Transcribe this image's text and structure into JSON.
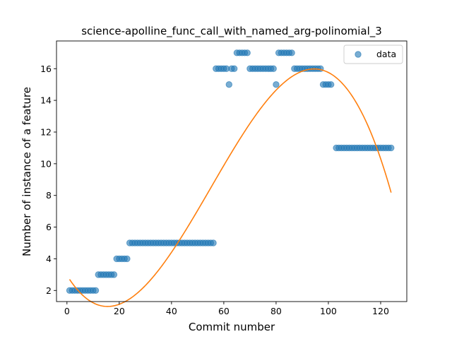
{
  "chart_data": {
    "type": "scatter",
    "title": "science-apolline_func_call_with_named_arg-polinomial_3",
    "xlabel": "Commit number",
    "ylabel": "Number of instance of a feature",
    "xlim": [
      -4,
      130
    ],
    "ylim": [
      1.3,
      17.75
    ],
    "xticks": [
      0,
      20,
      40,
      60,
      80,
      100,
      120
    ],
    "yticks": [
      2,
      4,
      6,
      8,
      10,
      12,
      14,
      16
    ],
    "legend": {
      "position": "top-right",
      "entries": [
        "data"
      ]
    },
    "grid": false,
    "colors": {
      "data": "#1f77b4",
      "fit": "#ff7f0e"
    },
    "series": [
      {
        "name": "data",
        "kind": "scatter",
        "points": [
          [
            1,
            2
          ],
          [
            2,
            2
          ],
          [
            3,
            2
          ],
          [
            4,
            2
          ],
          [
            5,
            2
          ],
          [
            6,
            2
          ],
          [
            7,
            2
          ],
          [
            8,
            2
          ],
          [
            9,
            2
          ],
          [
            10,
            2
          ],
          [
            11,
            2
          ],
          [
            12,
            3
          ],
          [
            13,
            3
          ],
          [
            14,
            3
          ],
          [
            15,
            3
          ],
          [
            16,
            3
          ],
          [
            17,
            3
          ],
          [
            18,
            3
          ],
          [
            19,
            4
          ],
          [
            20,
            4
          ],
          [
            21,
            4
          ],
          [
            22,
            4
          ],
          [
            23,
            4
          ],
          [
            24,
            5
          ],
          [
            25,
            5
          ],
          [
            26,
            5
          ],
          [
            27,
            5
          ],
          [
            28,
            5
          ],
          [
            29,
            5
          ],
          [
            30,
            5
          ],
          [
            31,
            5
          ],
          [
            32,
            5
          ],
          [
            33,
            5
          ],
          [
            34,
            5
          ],
          [
            35,
            5
          ],
          [
            36,
            5
          ],
          [
            37,
            5
          ],
          [
            38,
            5
          ],
          [
            39,
            5
          ],
          [
            40,
            5
          ],
          [
            41,
            5
          ],
          [
            42,
            5
          ],
          [
            43,
            5
          ],
          [
            44,
            5
          ],
          [
            45,
            5
          ],
          [
            46,
            5
          ],
          [
            47,
            5
          ],
          [
            48,
            5
          ],
          [
            49,
            5
          ],
          [
            50,
            5
          ],
          [
            51,
            5
          ],
          [
            52,
            5
          ],
          [
            53,
            5
          ],
          [
            54,
            5
          ],
          [
            55,
            5
          ],
          [
            56,
            5
          ],
          [
            57,
            16
          ],
          [
            58,
            16
          ],
          [
            59,
            16
          ],
          [
            60,
            16
          ],
          [
            61,
            16
          ],
          [
            62,
            15
          ],
          [
            63,
            16
          ],
          [
            64,
            16
          ],
          [
            65,
            17
          ],
          [
            66,
            17
          ],
          [
            67,
            17
          ],
          [
            68,
            17
          ],
          [
            69,
            17
          ],
          [
            70,
            16
          ],
          [
            71,
            16
          ],
          [
            72,
            16
          ],
          [
            73,
            16
          ],
          [
            74,
            16
          ],
          [
            75,
            16
          ],
          [
            76,
            16
          ],
          [
            77,
            16
          ],
          [
            78,
            16
          ],
          [
            79,
            16
          ],
          [
            80,
            15
          ],
          [
            81,
            17
          ],
          [
            82,
            17
          ],
          [
            83,
            17
          ],
          [
            84,
            17
          ],
          [
            85,
            17
          ],
          [
            86,
            17
          ],
          [
            87,
            16
          ],
          [
            88,
            16
          ],
          [
            89,
            16
          ],
          [
            90,
            16
          ],
          [
            91,
            16
          ],
          [
            92,
            16
          ],
          [
            93,
            16
          ],
          [
            94,
            16
          ],
          [
            95,
            16
          ],
          [
            96,
            16
          ],
          [
            97,
            16
          ],
          [
            98,
            15
          ],
          [
            99,
            15
          ],
          [
            100,
            15
          ],
          [
            101,
            15
          ],
          [
            103,
            11
          ],
          [
            104,
            11
          ],
          [
            105,
            11
          ],
          [
            106,
            11
          ],
          [
            107,
            11
          ],
          [
            108,
            11
          ],
          [
            109,
            11
          ],
          [
            110,
            11
          ],
          [
            111,
            11
          ],
          [
            112,
            11
          ],
          [
            113,
            11
          ],
          [
            114,
            11
          ],
          [
            115,
            11
          ],
          [
            116,
            11
          ],
          [
            117,
            11
          ],
          [
            118,
            11
          ],
          [
            119,
            11
          ],
          [
            120,
            11
          ],
          [
            121,
            11
          ],
          [
            122,
            11
          ],
          [
            123,
            11
          ],
          [
            124,
            11
          ]
        ]
      },
      {
        "kind": "line",
        "coefficients_cubic": [
          2.96,
          -0.268,
          0.01004,
          -6.08e-05
        ],
        "x_range": [
          1,
          124
        ]
      }
    ]
  }
}
